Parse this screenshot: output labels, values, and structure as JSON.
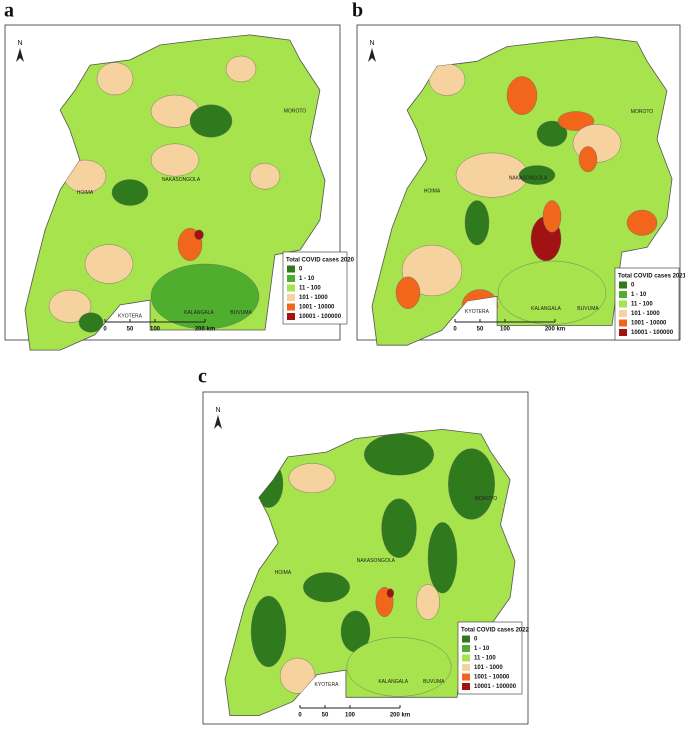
{
  "panels": [
    {
      "label": "a",
      "north": "N",
      "legend": {
        "title": "Total COVID cases 2020",
        "items": [
          "0",
          "1 - 10",
          "11 - 100",
          "101 - 1000",
          "1001 - 10000",
          "10001 - 100000"
        ],
        "colors": [
          "#2f7a1c",
          "#4fae2e",
          "#a6e34c",
          "#f6d29e",
          "#f2661b",
          "#a11212"
        ]
      },
      "scale": [
        "0",
        "50",
        "100",
        "200 km"
      ],
      "districts": [
        "MOROTO",
        "HOIMA",
        "KALANGALA",
        "BUVUMA",
        "KYOTERA",
        "NAKASONGOLA"
      ]
    },
    {
      "label": "b",
      "north": "N",
      "legend": {
        "title": "Total COVID cases 2021",
        "items": [
          "0",
          "1 - 10",
          "11 - 100",
          "101 - 1000",
          "1001 - 10000",
          "10001 - 100000"
        ],
        "colors": [
          "#2f7a1c",
          "#4fae2e",
          "#a6e34c",
          "#f6d29e",
          "#f2661b",
          "#a11212"
        ]
      },
      "scale": [
        "0",
        "50",
        "100",
        "200 km"
      ],
      "districts": [
        "MOROTO",
        "HOIMA",
        "KALANGALA",
        "BUVUMA",
        "KYOTERA",
        "NAKASONGOLA"
      ]
    },
    {
      "label": "c",
      "north": "N",
      "legend": {
        "title": "Total COVID cases 2022",
        "items": [
          "0",
          "1 - 10",
          "11 - 100",
          "101 - 1000",
          "1001 - 10000",
          "10001 - 100000"
        ],
        "colors": [
          "#2f7a1c",
          "#4fae2e",
          "#a6e34c",
          "#f6d29e",
          "#f2661b",
          "#a11212"
        ]
      },
      "scale": [
        "0",
        "50",
        "100",
        "200 km"
      ],
      "districts": [
        "MOROTO",
        "HOIMA",
        "KALANGALA",
        "BUVUMA",
        "KYOTERA",
        "NAKASONGOLA"
      ]
    }
  ]
}
